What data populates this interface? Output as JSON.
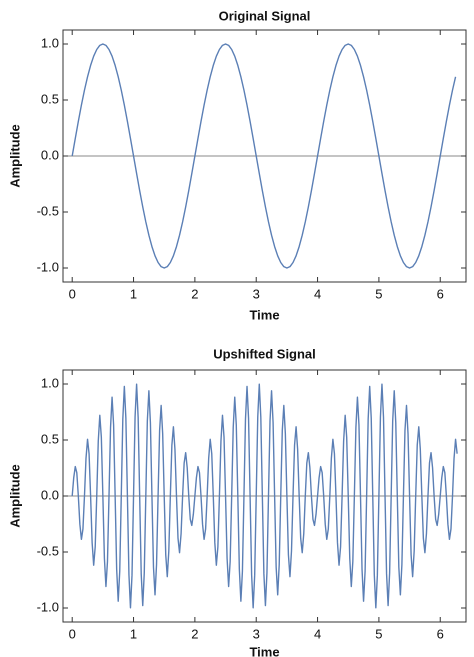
{
  "chart_data": [
    {
      "type": "line",
      "title": "Original Signal",
      "x_label": "Time",
      "y_label": "Amplitude",
      "xlim": [
        -0.15,
        6.42
      ],
      "ylim": [
        -1.125,
        1.125
      ],
      "xticks": [
        0,
        1,
        2,
        3,
        4,
        5,
        6
      ],
      "yticks": [
        {
          "value": -1,
          "label": "-1.0"
        },
        {
          "value": -0.5,
          "label": "-0.5"
        },
        {
          "value": 0,
          "label": "0.0"
        },
        {
          "value": 0.5,
          "label": "0.5"
        },
        {
          "value": 1,
          "label": "1.0"
        }
      ],
      "x": [
        0,
        0.05,
        0.1,
        0.15,
        0.2,
        0.25,
        0.3,
        0.35,
        0.4,
        0.45,
        0.5,
        0.55,
        0.6,
        0.65,
        0.7,
        0.75,
        0.8,
        0.85,
        0.9,
        0.95,
        1,
        1.05,
        1.1,
        1.15,
        1.2,
        1.25,
        1.3,
        1.35,
        1.4,
        1.45,
        1.5,
        1.55,
        1.6,
        1.65,
        1.7,
        1.75,
        1.8,
        1.85,
        1.9,
        1.95,
        2,
        2.05,
        2.1,
        2.15,
        2.2,
        2.25,
        2.3,
        2.35,
        2.4,
        2.45,
        2.5,
        2.55,
        2.6,
        2.65,
        2.7,
        2.75,
        2.8,
        2.85,
        2.9,
        2.95,
        3,
        3.05,
        3.1,
        3.15,
        3.2,
        3.25,
        3.3,
        3.35,
        3.4,
        3.45,
        3.5,
        3.55,
        3.6,
        3.65,
        3.7,
        3.75,
        3.8,
        3.85,
        3.9,
        3.95,
        4,
        4.05,
        4.1,
        4.15,
        4.2,
        4.25,
        4.3,
        4.35,
        4.4,
        4.45,
        4.5,
        4.55,
        4.6,
        4.65,
        4.7,
        4.75,
        4.8,
        4.85,
        4.9,
        4.95,
        5,
        5.05,
        5.1,
        5.15,
        5.2,
        5.25,
        5.3,
        5.35,
        5.4,
        5.45,
        5.5,
        5.55,
        5.6,
        5.65,
        5.7,
        5.75,
        5.8,
        5.85,
        5.9,
        5.95,
        6,
        6.05,
        6.1,
        6.15,
        6.2,
        6.25
      ],
      "series": [
        {
          "color": "#5b7fb5",
          "values": [
            0,
            0.156,
            0.309,
            0.454,
            0.588,
            0.707,
            0.809,
            0.891,
            0.951,
            0.988,
            1,
            0.988,
            0.951,
            0.891,
            0.809,
            0.707,
            0.588,
            0.454,
            0.309,
            0.156,
            0,
            -0.156,
            -0.309,
            -0.454,
            -0.588,
            -0.707,
            -0.809,
            -0.891,
            -0.951,
            -0.988,
            -1,
            -0.988,
            -0.951,
            -0.891,
            -0.809,
            -0.707,
            -0.588,
            -0.454,
            -0.309,
            -0.156,
            0,
            0.156,
            0.309,
            0.454,
            0.588,
            0.707,
            0.809,
            0.891,
            0.951,
            0.988,
            1,
            0.988,
            0.951,
            0.891,
            0.809,
            0.707,
            0.588,
            0.454,
            0.309,
            0.156,
            0,
            -0.156,
            -0.309,
            -0.454,
            -0.588,
            -0.707,
            -0.809,
            -0.891,
            -0.951,
            -0.988,
            -1,
            -0.988,
            -0.951,
            -0.891,
            -0.809,
            -0.707,
            -0.588,
            -0.454,
            -0.309,
            -0.156,
            0,
            0.156,
            0.309,
            0.454,
            0.588,
            0.707,
            0.809,
            0.891,
            0.951,
            0.988,
            1,
            0.988,
            0.951,
            0.891,
            0.809,
            0.707,
            0.588,
            0.454,
            0.309,
            0.156,
            0,
            -0.156,
            -0.309,
            -0.454,
            -0.588,
            -0.707,
            -0.809,
            -0.891,
            -0.951,
            -0.988,
            -1,
            -0.988,
            -0.951,
            -0.891,
            -0.809,
            -0.707,
            -0.588,
            -0.454,
            -0.309,
            -0.156,
            0,
            0.156,
            0.309,
            0.454,
            0.588,
            0.707
          ]
        }
      ]
    },
    {
      "type": "line",
      "title": "Upshifted Signal",
      "x_label": "Time",
      "y_label": "Amplitude",
      "xlim": [
        -0.15,
        6.42
      ],
      "ylim": [
        -1.125,
        1.125
      ],
      "xticks": [
        0,
        1,
        2,
        3,
        4,
        5,
        6
      ],
      "yticks": [
        {
          "value": -1,
          "label": "-1.0"
        },
        {
          "value": -0.5,
          "label": "-0.5"
        },
        {
          "value": 0,
          "label": "0.0"
        },
        {
          "value": 0.5,
          "label": "0.5"
        },
        {
          "value": 1,
          "label": "1.0"
        }
      ],
      "x": [
        0,
        0.025,
        0.05,
        0.075,
        0.1,
        0.125,
        0.15,
        0.175,
        0.2,
        0.225,
        0.25,
        0.275,
        0.3,
        0.325,
        0.35,
        0.375,
        0.4,
        0.425,
        0.45,
        0.475,
        0.5,
        0.525,
        0.55,
        0.575,
        0.6,
        0.625,
        0.65,
        0.675,
        0.7,
        0.725,
        0.75,
        0.775,
        0.8,
        0.825,
        0.85,
        0.875,
        0.9,
        0.925,
        0.95,
        0.975,
        1,
        1.025,
        1.05,
        1.075,
        1.1,
        1.125,
        1.15,
        1.175,
        1.2,
        1.225,
        1.25,
        1.275,
        1.3,
        1.325,
        1.35,
        1.375,
        1.4,
        1.425,
        1.45,
        1.475,
        1.5,
        1.525,
        1.55,
        1.575,
        1.6,
        1.625,
        1.65,
        1.675,
        1.7,
        1.725,
        1.75,
        1.775,
        1.8,
        1.825,
        1.85,
        1.875,
        1.9,
        1.925,
        1.95,
        1.975,
        2,
        2.025,
        2.05,
        2.075,
        2.1,
        2.125,
        2.15,
        2.175,
        2.2,
        2.225,
        2.25,
        2.275,
        2.3,
        2.325,
        2.35,
        2.375,
        2.4,
        2.425,
        2.45,
        2.475,
        2.5,
        2.525,
        2.55,
        2.575,
        2.6,
        2.625,
        2.65,
        2.675,
        2.7,
        2.725,
        2.75,
        2.775,
        2.8,
        2.825,
        2.85,
        2.875,
        2.9,
        2.925,
        2.95,
        2.975,
        3,
        3.025,
        3.05,
        3.075,
        3.1,
        3.125,
        3.15,
        3.175,
        3.2,
        3.225,
        3.25,
        3.275,
        3.3,
        3.325,
        3.35,
        3.375,
        3.4,
        3.425,
        3.45,
        3.475,
        3.5,
        3.525,
        3.55,
        3.575,
        3.6,
        3.625,
        3.65,
        3.675,
        3.7,
        3.725,
        3.75,
        3.775,
        3.8,
        3.825,
        3.85,
        3.875,
        3.9,
        3.925,
        3.95,
        3.975,
        4,
        4.025,
        4.05,
        4.075,
        4.1,
        4.125,
        4.15,
        4.175,
        4.2,
        4.225,
        4.25,
        4.275,
        4.3,
        4.325,
        4.35,
        4.375,
        4.4,
        4.425,
        4.45,
        4.475,
        4.5,
        4.525,
        4.55,
        4.575,
        4.6,
        4.625,
        4.65,
        4.675,
        4.7,
        4.725,
        4.75,
        4.775,
        4.8,
        4.825,
        4.85,
        4.875,
        4.9,
        4.925,
        4.95,
        4.975,
        5,
        5.025,
        5.05,
        5.075,
        5.1,
        5.125,
        5.15,
        5.175,
        5.2,
        5.225,
        5.25,
        5.275,
        5.3,
        5.325,
        5.35,
        5.375,
        5.4,
        5.425,
        5.45,
        5.475,
        5.5,
        5.525,
        5.55,
        5.575,
        5.6,
        5.625,
        5.65,
        5.675,
        5.7,
        5.725,
        5.75,
        5.775,
        5.8,
        5.825,
        5.85,
        5.875,
        5.9,
        5.925,
        5.95,
        5.975,
        6,
        6.025,
        6.05,
        6.075,
        6.1,
        6.125,
        6.15,
        6.175,
        6.2,
        6.225,
        6.25,
        6.275
      ],
      "series": [
        {
          "color": "#5b7fb5",
          "values": [
            0,
            0.163,
            0.263,
            0.208,
            0,
            -0.252,
            -0.387,
            -0.295,
            0,
            0.337,
            0.506,
            0.378,
            0,
            -0.418,
            -0.618,
            -0.455,
            0,
            0.491,
            0.72,
            0.525,
            0,
            -0.556,
            -0.808,
            -0.585,
            0,
            0.612,
            0.882,
            0.635,
            0,
            -0.655,
            -0.939,
            -0.672,
            0,
            0.686,
            0.978,
            0.696,
            0,
            -0.703,
            -0.998,
            -0.706,
            0,
            0.706,
            0.998,
            0.703,
            0,
            -0.696,
            -0.978,
            -0.686,
            0,
            0.672,
            0.939,
            0.655,
            0,
            -0.635,
            -0.882,
            -0.612,
            0,
            0.585,
            0.808,
            0.556,
            0,
            -0.525,
            -0.72,
            -0.491,
            0,
            0.455,
            0.618,
            0.418,
            0,
            -0.378,
            -0.506,
            -0.337,
            0,
            0.295,
            0.387,
            0.252,
            0,
            -0.208,
            -0.263,
            -0.163,
            0,
            0.163,
            0.263,
            0.208,
            0,
            -0.252,
            -0.387,
            -0.295,
            0,
            0.337,
            0.506,
            0.378,
            0,
            -0.418,
            -0.618,
            -0.455,
            0,
            0.491,
            0.72,
            0.525,
            0,
            -0.556,
            -0.808,
            -0.585,
            0,
            0.612,
            0.882,
            0.635,
            0,
            -0.655,
            -0.939,
            -0.672,
            0,
            0.686,
            0.978,
            0.696,
            0,
            -0.703,
            -0.998,
            -0.706,
            0,
            0.706,
            0.998,
            0.703,
            0,
            -0.696,
            -0.978,
            -0.686,
            0,
            0.672,
            0.939,
            0.655,
            0,
            -0.635,
            -0.882,
            -0.612,
            0,
            0.585,
            0.808,
            0.556,
            0,
            -0.525,
            -0.72,
            -0.491,
            0,
            0.455,
            0.618,
            0.418,
            0,
            -0.378,
            -0.506,
            -0.337,
            0,
            0.295,
            0.387,
            0.252,
            0,
            -0.208,
            -0.263,
            -0.163,
            0,
            0.163,
            0.263,
            0.208,
            0,
            -0.252,
            -0.387,
            -0.295,
            0,
            0.337,
            0.506,
            0.378,
            0,
            -0.418,
            -0.618,
            -0.455,
            0,
            0.491,
            0.72,
            0.525,
            0,
            -0.556,
            -0.808,
            -0.585,
            0,
            0.612,
            0.882,
            0.635,
            0,
            -0.655,
            -0.939,
            -0.672,
            0,
            0.686,
            0.978,
            0.696,
            0,
            -0.703,
            -0.998,
            -0.706,
            0,
            0.706,
            0.998,
            0.703,
            0,
            -0.696,
            -0.978,
            -0.686,
            0,
            0.672,
            0.939,
            0.655,
            0,
            -0.635,
            -0.882,
            -0.612,
            0,
            0.585,
            0.808,
            0.556,
            0,
            -0.525,
            -0.72,
            -0.491,
            0,
            0.455,
            0.618,
            0.418,
            0,
            -0.378,
            -0.506,
            -0.337,
            0,
            0.295,
            0.387,
            0.252,
            0,
            -0.208,
            -0.263,
            -0.163,
            0,
            0.163,
            0.263,
            0.208,
            0,
            -0.252,
            -0.387,
            -0.295,
            0,
            0.337,
            0.506,
            0.378
          ]
        }
      ]
    }
  ]
}
